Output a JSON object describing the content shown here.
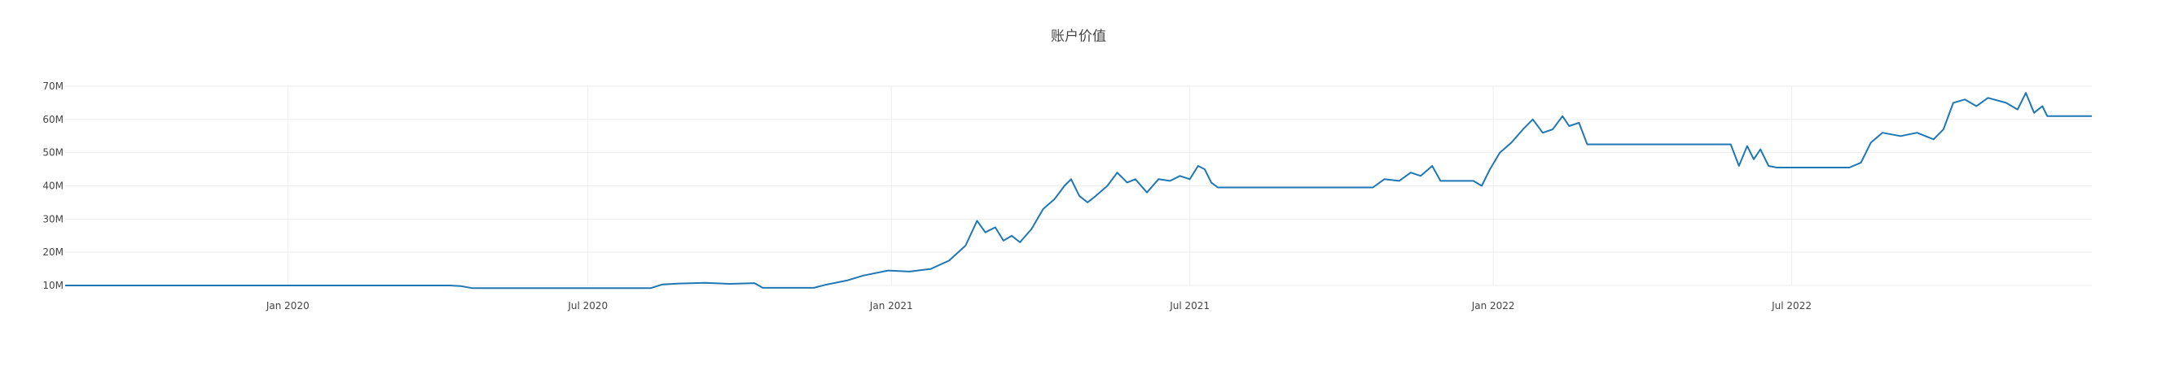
{
  "chart_data": {
    "type": "line",
    "title": "账户价值",
    "xlabel": "",
    "ylabel": "",
    "grid": true,
    "line_color": "#1f77b4",
    "xlim": [
      "2019-08-19",
      "2022-12-30"
    ],
    "ylim": [
      10,
      70
    ],
    "y_ticks": [
      {
        "value": 10,
        "label": "10M"
      },
      {
        "value": 20,
        "label": "20M"
      },
      {
        "value": 30,
        "label": "30M"
      },
      {
        "value": 40,
        "label": "40M"
      },
      {
        "value": 50,
        "label": "50M"
      },
      {
        "value": 60,
        "label": "60M"
      },
      {
        "value": 70,
        "label": "70M"
      }
    ],
    "x_ticks": [
      {
        "value": "2020-01-01",
        "label": "Jan 2020"
      },
      {
        "value": "2020-07-01",
        "label": "Jul 2020"
      },
      {
        "value": "2021-01-01",
        "label": "Jan 2021"
      },
      {
        "value": "2021-07-01",
        "label": "Jul 2021"
      },
      {
        "value": "2022-01-01",
        "label": "Jan 2022"
      },
      {
        "value": "2022-07-01",
        "label": "Jul 2022"
      }
    ],
    "series": [
      {
        "points": [
          [
            "2019-08-19",
            10.0
          ],
          [
            "2020-04-08",
            10.0
          ],
          [
            "2020-04-15",
            9.8
          ],
          [
            "2020-04-22",
            9.2
          ],
          [
            "2020-06-20",
            9.2
          ],
          [
            "2020-08-08",
            9.2
          ],
          [
            "2020-08-15",
            10.3
          ],
          [
            "2020-08-25",
            10.6
          ],
          [
            "2020-09-10",
            10.8
          ],
          [
            "2020-09-25",
            10.5
          ],
          [
            "2020-10-10",
            10.7
          ],
          [
            "2020-10-15",
            9.3
          ],
          [
            "2020-11-15",
            9.3
          ],
          [
            "2020-11-22",
            10.2
          ],
          [
            "2020-12-05",
            11.5
          ],
          [
            "2020-12-15",
            13.0
          ],
          [
            "2020-12-30",
            14.5
          ],
          [
            "2021-01-12",
            14.2
          ],
          [
            "2021-01-25",
            15.0
          ],
          [
            "2021-02-05",
            17.5
          ],
          [
            "2021-02-15",
            22.0
          ],
          [
            "2021-02-22",
            29.5
          ],
          [
            "2021-02-27",
            26.0
          ],
          [
            "2021-03-05",
            27.5
          ],
          [
            "2021-03-10",
            23.5
          ],
          [
            "2021-03-15",
            25.0
          ],
          [
            "2021-03-20",
            23.0
          ],
          [
            "2021-03-27",
            27.0
          ],
          [
            "2021-04-03",
            33.0
          ],
          [
            "2021-04-10",
            36.0
          ],
          [
            "2021-04-16",
            40.0
          ],
          [
            "2021-04-20",
            42.0
          ],
          [
            "2021-04-25",
            37.0
          ],
          [
            "2021-04-30",
            35.0
          ],
          [
            "2021-05-05",
            37.0
          ],
          [
            "2021-05-12",
            40.0
          ],
          [
            "2021-05-18",
            44.0
          ],
          [
            "2021-05-24",
            41.0
          ],
          [
            "2021-05-29",
            42.0
          ],
          [
            "2021-06-05",
            38.0
          ],
          [
            "2021-06-12",
            42.0
          ],
          [
            "2021-06-19",
            41.5
          ],
          [
            "2021-06-25",
            43.0
          ],
          [
            "2021-07-01",
            42.0
          ],
          [
            "2021-07-06",
            46.0
          ],
          [
            "2021-07-10",
            45.0
          ],
          [
            "2021-07-14",
            41.0
          ],
          [
            "2021-07-18",
            39.5
          ],
          [
            "2021-10-20",
            39.5
          ],
          [
            "2021-10-27",
            42.0
          ],
          [
            "2021-11-05",
            41.5
          ],
          [
            "2021-11-12",
            44.0
          ],
          [
            "2021-11-18",
            43.0
          ],
          [
            "2021-11-25",
            46.0
          ],
          [
            "2021-11-30",
            41.5
          ],
          [
            "2021-12-20",
            41.5
          ],
          [
            "2021-12-25",
            40.0
          ],
          [
            "2021-12-30",
            45.0
          ],
          [
            "2022-01-05",
            50.0
          ],
          [
            "2022-01-12",
            53.0
          ],
          [
            "2022-01-19",
            57.0
          ],
          [
            "2022-01-25",
            60.0
          ],
          [
            "2022-01-31",
            56.0
          ],
          [
            "2022-02-06",
            57.0
          ],
          [
            "2022-02-12",
            61.0
          ],
          [
            "2022-02-16",
            58.0
          ],
          [
            "2022-02-22",
            59.0
          ],
          [
            "2022-02-27",
            52.5
          ],
          [
            "2022-05-25",
            52.5
          ],
          [
            "2022-05-30",
            46.0
          ],
          [
            "2022-06-04",
            52.0
          ],
          [
            "2022-06-08",
            48.0
          ],
          [
            "2022-06-12",
            51.0
          ],
          [
            "2022-06-17",
            46.0
          ],
          [
            "2022-06-22",
            45.5
          ],
          [
            "2022-08-05",
            45.5
          ],
          [
            "2022-08-12",
            47.0
          ],
          [
            "2022-08-18",
            53.0
          ],
          [
            "2022-08-25",
            56.0
          ],
          [
            "2022-09-05",
            55.0
          ],
          [
            "2022-09-15",
            56.0
          ],
          [
            "2022-09-25",
            54.0
          ],
          [
            "2022-10-01",
            57.0
          ],
          [
            "2022-10-07",
            65.0
          ],
          [
            "2022-10-14",
            66.0
          ],
          [
            "2022-10-21",
            64.0
          ],
          [
            "2022-10-28",
            66.5
          ],
          [
            "2022-11-08",
            65.0
          ],
          [
            "2022-11-15",
            63.0
          ],
          [
            "2022-11-20",
            68.0
          ],
          [
            "2022-11-25",
            62.0
          ],
          [
            "2022-11-30",
            64.0
          ],
          [
            "2022-12-03",
            61.0
          ],
          [
            "2022-12-30",
            61.0
          ]
        ]
      }
    ]
  }
}
